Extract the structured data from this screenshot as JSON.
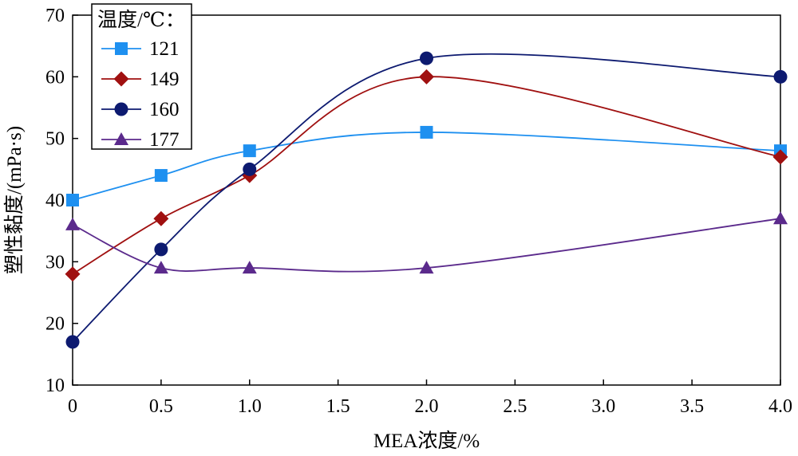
{
  "chart_data": {
    "type": "line",
    "xlabel": "MEA浓度/%",
    "ylabel": "塑性黏度/(mPa·s)",
    "xlim": [
      0,
      4.0
    ],
    "ylim": [
      10,
      70
    ],
    "x_ticks": [
      "0",
      "0.5",
      "1.0",
      "1.5",
      "2.0",
      "2.5",
      "3.0",
      "3.5",
      "4.0"
    ],
    "y_ticks": [
      "10",
      "20",
      "30",
      "40",
      "50",
      "60",
      "70"
    ],
    "grid": false,
    "legend": {
      "title": "温度/℃：",
      "position": "top-left"
    },
    "x": [
      0,
      0.5,
      1.0,
      2.0,
      4.0
    ],
    "series": [
      {
        "name": "121",
        "values": [
          40,
          44,
          48,
          51,
          48
        ],
        "color": "#1E90F0",
        "marker": "square"
      },
      {
        "name": "149",
        "values": [
          28,
          37,
          44,
          60,
          47
        ],
        "color": "#A01010",
        "marker": "diamond"
      },
      {
        "name": "160",
        "values": [
          17,
          32,
          45,
          63,
          60
        ],
        "color": "#0D1A70",
        "marker": "circle"
      },
      {
        "name": "177",
        "values": [
          36,
          29,
          29,
          29,
          37
        ],
        "color": "#5B2A8C",
        "marker": "triangle"
      }
    ]
  }
}
